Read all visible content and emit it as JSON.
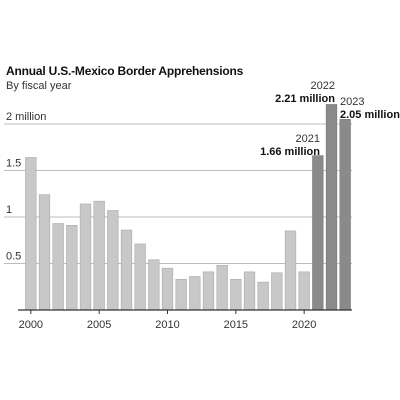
{
  "chart_data": {
    "type": "bar",
    "title": "Annual U.S.-Mexico Border Apprehensions",
    "subtitle": "By fiscal year",
    "xlabel": "",
    "ylabel": "",
    "x": [
      2000,
      2001,
      2002,
      2003,
      2004,
      2005,
      2006,
      2007,
      2008,
      2009,
      2010,
      2011,
      2012,
      2013,
      2014,
      2015,
      2016,
      2017,
      2018,
      2019,
      2020,
      2021,
      2022,
      2023
    ],
    "values": [
      1.64,
      1.24,
      0.93,
      0.91,
      1.14,
      1.17,
      1.07,
      0.86,
      0.71,
      0.54,
      0.45,
      0.33,
      0.36,
      0.41,
      0.48,
      0.33,
      0.41,
      0.3,
      0.4,
      0.85,
      0.41,
      1.66,
      2.21,
      2.05
    ],
    "ylim": [
      0,
      2.4
    ],
    "y_ticks": [
      0.5,
      1,
      1.5,
      2
    ],
    "y_tick_labels": [
      "0.5",
      "1",
      "1.5",
      "2 million"
    ],
    "x_ticks": [
      2000,
      2005,
      2010,
      2015,
      2020
    ],
    "x_tick_labels": [
      "2000",
      "2005",
      "2010",
      "2015",
      "2020"
    ],
    "grid": true,
    "colors": {
      "bar": "#c8c8c8",
      "bar_stroke": "#a8a8a8",
      "highlight_bar": "#8a8a8a",
      "gridline": "#bdbdbd",
      "axis": "#333333"
    },
    "highlighted_years": [
      2021,
      2022,
      2023
    ],
    "annotations": [
      {
        "year": "2021",
        "value_label": "1.66 million"
      },
      {
        "year": "2022",
        "value_label": "2.21 million"
      },
      {
        "year": "2023",
        "value_label": "2.05 million"
      }
    ]
  }
}
